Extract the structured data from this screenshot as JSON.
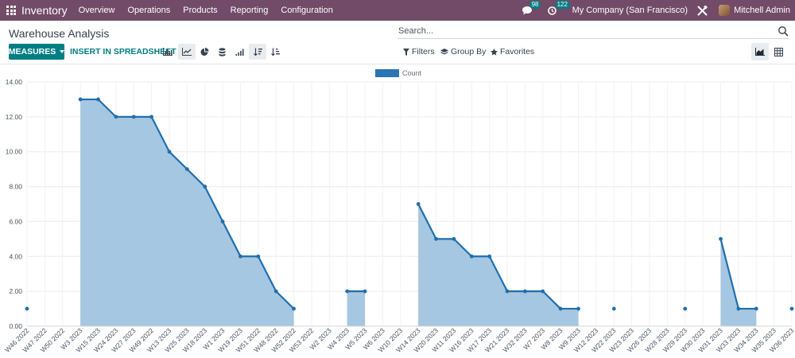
{
  "navbar": {
    "app_name": "Inventory",
    "menu": [
      "Overview",
      "Operations",
      "Products",
      "Reporting",
      "Configuration"
    ],
    "messages_count": "98",
    "activities_count": "122",
    "company": "My Company (San Francisco)",
    "user": "Mitchell Admin"
  },
  "page": {
    "title": "Warehouse Analysis"
  },
  "search": {
    "placeholder": "Search..."
  },
  "toolbar": {
    "measures_label": "MEASURES",
    "spreadsheet_label": "INSERT IN SPREADSHEET",
    "filters_label": "Filters",
    "groupby_label": "Group By",
    "favorites_label": "Favorites"
  },
  "colors": {
    "navbar": "#714B67",
    "accent": "#017E84",
    "line": "#1f6fae",
    "area": "#a5c7e1"
  },
  "chart_data": {
    "type": "area",
    "legend": [
      "Count"
    ],
    "legend_position": "top",
    "grid": true,
    "ylim": [
      0,
      14
    ],
    "y_ticks": [
      "0.00",
      "2.00",
      "4.00",
      "6.00",
      "8.00",
      "10.00",
      "12.00",
      "14.00"
    ],
    "categories": [
      "W46 2022",
      "W47 2022",
      "W50 2022",
      "W3 2023",
      "W15 2023",
      "W24 2023",
      "W27 2023",
      "W49 2022",
      "W13 2023",
      "W25 2023",
      "W18 2023",
      "W1 2023",
      "W19 2023",
      "W51 2022",
      "W48 2022",
      "W52 2022",
      "W53 2022",
      "W2 2023",
      "W4 2023",
      "W5 2023",
      "W6 2023",
      "W10 2023",
      "W14 2023",
      "W20 2023",
      "W11 2023",
      "W16 2023",
      "W17 2023",
      "W21 2023",
      "W32 2023",
      "W7 2023",
      "W8 2023",
      "W9 2023",
      "W12 2023",
      "W22 2023",
      "W23 2023",
      "W26 2023",
      "W28 2023",
      "W29 2023",
      "W30 2023",
      "W31 2023",
      "W33 2023",
      "W34 2023",
      "W35 2023",
      "W36 2023"
    ],
    "series": [
      {
        "name": "Count",
        "values": [
          1,
          null,
          null,
          13,
          13,
          12,
          12,
          12,
          10,
          9,
          8,
          6,
          4,
          4,
          2,
          1,
          null,
          null,
          2,
          2,
          null,
          null,
          7,
          5,
          5,
          4,
          4,
          2,
          2,
          2,
          1,
          1,
          null,
          1,
          null,
          null,
          null,
          1,
          null,
          5,
          1,
          1,
          null,
          1
        ]
      }
    ]
  }
}
